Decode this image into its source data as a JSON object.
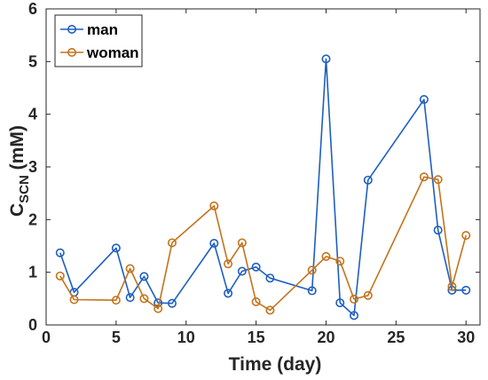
{
  "chart_data": {
    "type": "line",
    "title": "",
    "xlabel": "Time (day)",
    "ylabel": {
      "main": "C",
      "sub": "SCN",
      "suffix": " (mM)"
    },
    "xlim": [
      0,
      31
    ],
    "ylim": [
      0,
      6
    ],
    "xticks": [
      0,
      5,
      10,
      15,
      20,
      25,
      30
    ],
    "yticks": [
      0,
      1,
      2,
      3,
      4,
      5,
      6
    ],
    "grid": false,
    "legend_position": "top-left",
    "series": [
      {
        "name": "man",
        "color": "#1f5fbf",
        "marker": "circle",
        "x": [
          1,
          2,
          5,
          6,
          7,
          8,
          9,
          12,
          13,
          14,
          15,
          16,
          19,
          20,
          21,
          22,
          23,
          27,
          28,
          29,
          30
        ],
        "y": [
          1.37,
          0.62,
          1.46,
          0.52,
          0.92,
          0.42,
          0.41,
          1.55,
          0.6,
          1.02,
          1.1,
          0.89,
          0.65,
          5.05,
          0.42,
          0.18,
          2.75,
          4.28,
          1.8,
          0.66,
          0.66
        ]
      },
      {
        "name": "woman",
        "color": "#c4731c",
        "marker": "circle",
        "x": [
          1,
          2,
          5,
          6,
          7,
          8,
          9,
          12,
          13,
          14,
          15,
          16,
          19,
          20,
          21,
          22,
          23,
          27,
          28,
          29,
          30
        ],
        "y": [
          0.93,
          0.48,
          0.47,
          1.07,
          0.5,
          0.31,
          1.56,
          2.26,
          1.16,
          1.56,
          0.44,
          0.28,
          1.04,
          1.3,
          1.21,
          0.49,
          0.56,
          2.81,
          2.76,
          0.73,
          1.7
        ]
      }
    ]
  }
}
